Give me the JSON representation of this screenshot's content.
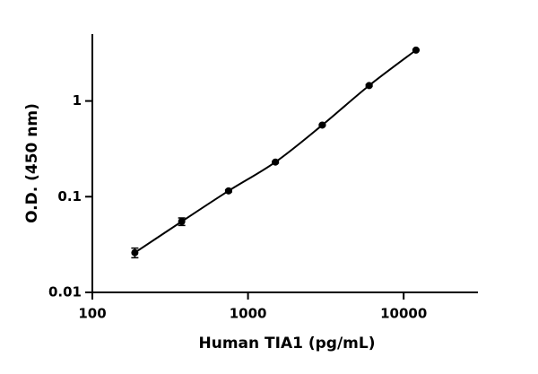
{
  "chart_data": {
    "type": "scatter",
    "xlabel": "Human TIA1 (pg/mL)",
    "ylabel": "O.D. (450 nm)",
    "xscale": "log",
    "yscale": "log",
    "xlim": [
      100,
      30000
    ],
    "ylim": [
      0.01,
      5
    ],
    "xticks": [
      100,
      1000,
      10000
    ],
    "yticks": [
      0.01,
      0.1,
      1
    ],
    "series": [
      {
        "color": "#000000",
        "x": [
          187.5,
          375,
          750,
          1500,
          3000,
          6000,
          12000
        ],
        "values": [
          0.026,
          0.055,
          0.115,
          0.23,
          0.56,
          1.45,
          3.4
        ],
        "errors": [
          0.003,
          0.005,
          0.003,
          0.005,
          0.01,
          0.03,
          0.05
        ]
      }
    ],
    "fit_line": true
  }
}
